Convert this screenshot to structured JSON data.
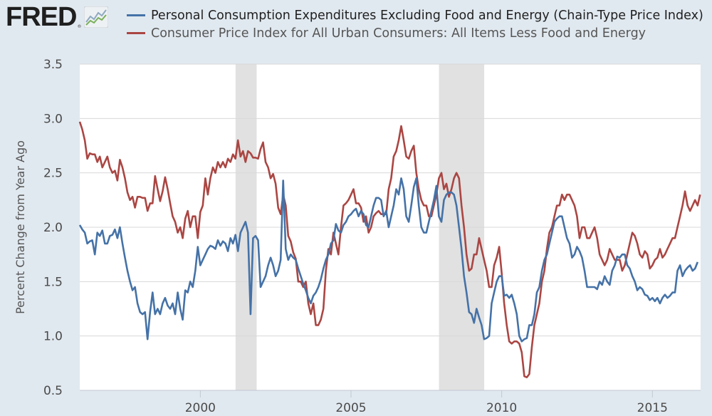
{
  "logo": {
    "text": "FRED",
    "registered": "®",
    "icon": "line-chart-icon"
  },
  "chart_data": {
    "type": "line",
    "title": "",
    "xlabel": "",
    "ylabel": "Percent Change from Year Ago",
    "ylim": [
      0.5,
      3.5
    ],
    "yticks": [
      "0.5",
      "1.0",
      "1.5",
      "2.0",
      "2.5",
      "3.0",
      "3.5"
    ],
    "xlim": [
      1996.0,
      2016.6
    ],
    "xticks": [
      "2000",
      "2005",
      "2010",
      "2015"
    ],
    "grid": "horizontal",
    "legend_position": "top",
    "x_start": "1996-01",
    "x_frequency": "monthly",
    "recessions": [
      {
        "label": "2001 recession",
        "start": 2001.17,
        "end": 2001.87
      },
      {
        "label": "2007-2009 recession",
        "start": 2007.92,
        "end": 2009.42
      }
    ],
    "series": [
      {
        "name": "Personal Consumption Expenditures Excluding Food and Energy (Chain-Type Price Index)",
        "color": "#4572a7",
        "values": [
          2.02,
          1.98,
          1.95,
          1.85,
          1.87,
          1.88,
          1.75,
          1.95,
          1.92,
          1.97,
          1.85,
          1.85,
          1.92,
          1.93,
          1.98,
          1.9,
          2.0,
          1.85,
          1.72,
          1.6,
          1.5,
          1.42,
          1.45,
          1.3,
          1.22,
          1.2,
          1.22,
          0.97,
          1.22,
          1.4,
          1.2,
          1.25,
          1.2,
          1.3,
          1.35,
          1.28,
          1.25,
          1.3,
          1.2,
          1.4,
          1.25,
          1.15,
          1.42,
          1.4,
          1.5,
          1.45,
          1.6,
          1.82,
          1.65,
          1.7,
          1.75,
          1.8,
          1.83,
          1.82,
          1.8,
          1.88,
          1.83,
          1.87,
          1.85,
          1.78,
          1.9,
          1.85,
          1.93,
          1.78,
          1.95,
          2.0,
          2.05,
          1.95,
          1.2,
          1.9,
          1.92,
          1.88,
          1.45,
          1.5,
          1.55,
          1.65,
          1.72,
          1.65,
          1.55,
          1.6,
          1.7,
          2.43,
          1.8,
          1.7,
          1.75,
          1.72,
          1.7,
          1.62,
          1.55,
          1.48,
          1.42,
          1.35,
          1.3,
          1.37,
          1.4,
          1.45,
          1.52,
          1.62,
          1.7,
          1.75,
          1.85,
          1.88,
          2.03,
          1.97,
          1.95,
          2.02,
          2.05,
          2.1,
          2.12,
          2.15,
          2.17,
          2.1,
          2.15,
          2.12,
          2.02,
          2.0,
          2.1,
          2.2,
          2.27,
          2.27,
          2.25,
          2.1,
          2.15,
          2.0,
          2.1,
          2.2,
          2.35,
          2.3,
          2.45,
          2.35,
          2.1,
          2.05,
          2.2,
          2.37,
          2.45,
          2.2,
          2.0,
          1.95,
          1.95,
          2.05,
          2.15,
          2.25,
          2.38,
          2.1,
          2.05,
          2.25,
          2.3,
          2.32,
          2.32,
          2.3,
          2.2,
          2.0,
          1.8,
          1.55,
          1.4,
          1.22,
          1.2,
          1.12,
          1.25,
          1.17,
          1.1,
          0.97,
          0.98,
          1.0,
          1.3,
          1.4,
          1.5,
          1.55,
          1.55,
          1.37,
          1.38,
          1.35,
          1.38,
          1.3,
          1.2,
          1.0,
          0.95,
          0.97,
          0.98,
          1.1,
          1.1,
          1.2,
          1.4,
          1.45,
          1.6,
          1.7,
          1.75,
          1.85,
          1.95,
          2.05,
          2.08,
          2.1,
          2.1,
          2.0,
          1.9,
          1.85,
          1.72,
          1.75,
          1.82,
          1.78,
          1.72,
          1.6,
          1.45,
          1.45,
          1.45,
          1.45,
          1.43,
          1.5,
          1.47,
          1.55,
          1.5,
          1.47,
          1.6,
          1.65,
          1.73,
          1.72,
          1.75,
          1.75,
          1.65,
          1.62,
          1.55,
          1.5,
          1.42,
          1.45,
          1.43,
          1.38,
          1.37,
          1.33,
          1.35,
          1.32,
          1.35,
          1.3,
          1.35,
          1.38,
          1.35,
          1.37,
          1.4,
          1.4,
          1.6,
          1.65,
          1.55,
          1.6,
          1.63,
          1.65,
          1.6,
          1.62,
          1.68
        ]
      },
      {
        "name": "Consumer Price Index for All Urban Consumers: All Items Less Food and Energy",
        "color": "#aa4643",
        "values": [
          2.97,
          2.9,
          2.8,
          2.63,
          2.68,
          2.67,
          2.67,
          2.6,
          2.65,
          2.55,
          2.6,
          2.65,
          2.55,
          2.5,
          2.52,
          2.43,
          2.62,
          2.55,
          2.45,
          2.32,
          2.25,
          2.28,
          2.18,
          2.28,
          2.28,
          2.27,
          2.27,
          2.15,
          2.22,
          2.22,
          2.47,
          2.35,
          2.24,
          2.33,
          2.46,
          2.35,
          2.22,
          2.1,
          2.05,
          1.95,
          2.0,
          1.9,
          2.08,
          2.15,
          2.0,
          2.1,
          2.1,
          1.9,
          2.14,
          2.2,
          2.45,
          2.3,
          2.45,
          2.55,
          2.5,
          2.6,
          2.55,
          2.6,
          2.55,
          2.63,
          2.6,
          2.67,
          2.63,
          2.8,
          2.65,
          2.7,
          2.6,
          2.7,
          2.68,
          2.64,
          2.64,
          2.63,
          2.72,
          2.78,
          2.6,
          2.55,
          2.45,
          2.49,
          2.4,
          2.18,
          2.12,
          2.3,
          2.2,
          1.92,
          1.87,
          1.77,
          1.71,
          1.5,
          1.5,
          1.45,
          1.5,
          1.3,
          1.2,
          1.3,
          1.1,
          1.1,
          1.15,
          1.25,
          1.6,
          1.8,
          1.75,
          1.95,
          1.85,
          1.75,
          2.0,
          2.2,
          2.22,
          2.25,
          2.3,
          2.35,
          2.22,
          2.22,
          2.18,
          2.05,
          2.1,
          1.95,
          2.0,
          2.1,
          2.13,
          2.15,
          2.12,
          2.12,
          2.12,
          2.35,
          2.45,
          2.65,
          2.7,
          2.8,
          2.93,
          2.8,
          2.65,
          2.63,
          2.7,
          2.75,
          2.5,
          2.35,
          2.25,
          2.2,
          2.2,
          2.1,
          2.1,
          2.2,
          2.3,
          2.45,
          2.5,
          2.35,
          2.4,
          2.28,
          2.35,
          2.45,
          2.5,
          2.45,
          2.2,
          2.0,
          1.75,
          1.6,
          1.62,
          1.75,
          1.75,
          1.9,
          1.8,
          1.7,
          1.6,
          1.45,
          1.45,
          1.65,
          1.72,
          1.82,
          1.58,
          1.3,
          1.1,
          0.95,
          0.93,
          0.95,
          0.95,
          0.93,
          0.85,
          0.63,
          0.62,
          0.65,
          0.9,
          1.1,
          1.2,
          1.3,
          1.5,
          1.6,
          1.8,
          1.95,
          2.0,
          2.1,
          2.2,
          2.2,
          2.3,
          2.25,
          2.3,
          2.3,
          2.25,
          2.2,
          2.1,
          1.9,
          2.0,
          2.0,
          1.9,
          1.9,
          1.95,
          2.0,
          1.9,
          1.75,
          1.7,
          1.65,
          1.7,
          1.8,
          1.75,
          1.7,
          1.7,
          1.7,
          1.6,
          1.65,
          1.75,
          1.85,
          1.95,
          1.92,
          1.85,
          1.75,
          1.72,
          1.78,
          1.75,
          1.62,
          1.65,
          1.7,
          1.72,
          1.8,
          1.72,
          1.75,
          1.8,
          1.85,
          1.9,
          1.9,
          2.0,
          2.1,
          2.2,
          2.33,
          2.2,
          2.15,
          2.2,
          2.25,
          2.2,
          2.3
        ]
      }
    ]
  },
  "legend": [
    {
      "label": "Personal Consumption Expenditures Excluding Food and Energy (Chain-Type Price Index)",
      "color": "#4572a7",
      "text_color": "#1f1f1f"
    },
    {
      "label": "Consumer Price Index for All Urban Consumers: All Items Less Food and Energy",
      "color": "#aa4643",
      "text_color": "#555555"
    }
  ]
}
